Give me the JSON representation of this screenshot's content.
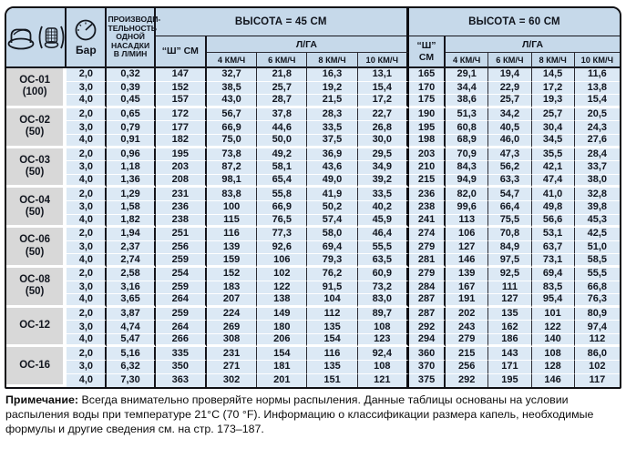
{
  "table": {
    "header": {
      "pressure_label": "Бар",
      "flow_label": "ПРОИЗВОДИ-ТЕЛЬНОСТЬ ОДНОЙ НАСАДКИ В Л/МИН",
      "section_45": "ВЫСОТА = 45 СМ",
      "section_60": "ВЫСОТА = 60 СМ",
      "width_label": "“Ш” СМ",
      "rate_label": "Л/ГА",
      "speed_labels": [
        "4 КМ/Ч",
        "6 КМ/Ч",
        "8 КМ/Ч",
        "10 КМ/Ч"
      ],
      "icons": {
        "nozzle": "flat-fan-nozzle-icon",
        "strainer": "strainer-icon",
        "gauge": "pressure-gauge-icon"
      }
    },
    "groups": [
      {
        "model": "ОС-01",
        "variant": "(100)",
        "rows": [
          [
            "2,0",
            "0,32",
            "147",
            "32,7",
            "21,8",
            "16,3",
            "13,1",
            "165",
            "29,1",
            "19,4",
            "14,5",
            "11,6"
          ],
          [
            "3,0",
            "0,39",
            "152",
            "38,5",
            "25,7",
            "19,2",
            "15,4",
            "170",
            "34,4",
            "22,9",
            "17,2",
            "13,8"
          ],
          [
            "4,0",
            "0,45",
            "157",
            "43,0",
            "28,7",
            "21,5",
            "17,2",
            "175",
            "38,6",
            "25,7",
            "19,3",
            "15,4"
          ]
        ]
      },
      {
        "model": "ОС-02",
        "variant": "(50)",
        "rows": [
          [
            "2,0",
            "0,65",
            "172",
            "56,7",
            "37,8",
            "28,3",
            "22,7",
            "190",
            "51,3",
            "34,2",
            "25,7",
            "20,5"
          ],
          [
            "3,0",
            "0,79",
            "177",
            "66,9",
            "44,6",
            "33,5",
            "26,8",
            "195",
            "60,8",
            "40,5",
            "30,4",
            "24,3"
          ],
          [
            "4,0",
            "0,91",
            "182",
            "75,0",
            "50,0",
            "37,5",
            "30,0",
            "198",
            "68,9",
            "46,0",
            "34,5",
            "27,6"
          ]
        ]
      },
      {
        "model": "ОС-03",
        "variant": "(50)",
        "rows": [
          [
            "2,0",
            "0,96",
            "195",
            "73,8",
            "49,2",
            "36,9",
            "29,5",
            "203",
            "70,9",
            "47,3",
            "35,5",
            "28,4"
          ],
          [
            "3,0",
            "1,18",
            "203",
            "87,2",
            "58,1",
            "43,6",
            "34,9",
            "210",
            "84,3",
            "56,2",
            "42,1",
            "33,7"
          ],
          [
            "4,0",
            "1,36",
            "208",
            "98,1",
            "65,4",
            "49,0",
            "39,2",
            "215",
            "94,9",
            "63,3",
            "47,4",
            "38,0"
          ]
        ]
      },
      {
        "model": "ОС-04",
        "variant": "(50)",
        "rows": [
          [
            "2,0",
            "1,29",
            "231",
            "83,8",
            "55,8",
            "41,9",
            "33,5",
            "236",
            "82,0",
            "54,7",
            "41,0",
            "32,8"
          ],
          [
            "3,0",
            "1,58",
            "236",
            "100",
            "66,9",
            "50,2",
            "40,2",
            "238",
            "99,6",
            "66,4",
            "49,8",
            "39,8"
          ],
          [
            "4,0",
            "1,82",
            "238",
            "115",
            "76,5",
            "57,4",
            "45,9",
            "241",
            "113",
            "75,5",
            "56,6",
            "45,3"
          ]
        ]
      },
      {
        "model": "ОС-06",
        "variant": "(50)",
        "rows": [
          [
            "2,0",
            "1,94",
            "251",
            "116",
            "77,3",
            "58,0",
            "46,4",
            "274",
            "106",
            "70,8",
            "53,1",
            "42,5"
          ],
          [
            "3,0",
            "2,37",
            "256",
            "139",
            "92,6",
            "69,4",
            "55,5",
            "279",
            "127",
            "84,9",
            "63,7",
            "51,0"
          ],
          [
            "4,0",
            "2,74",
            "259",
            "159",
            "106",
            "79,3",
            "63,5",
            "281",
            "146",
            "97,5",
            "73,1",
            "58,5"
          ]
        ]
      },
      {
        "model": "ОС-08",
        "variant": "(50)",
        "rows": [
          [
            "2,0",
            "2,58",
            "254",
            "152",
            "102",
            "76,2",
            "60,9",
            "279",
            "139",
            "92,5",
            "69,4",
            "55,5"
          ],
          [
            "3,0",
            "3,16",
            "259",
            "183",
            "122",
            "91,5",
            "73,2",
            "284",
            "167",
            "111",
            "83,5",
            "66,8"
          ],
          [
            "4,0",
            "3,65",
            "264",
            "207",
            "138",
            "104",
            "83,0",
            "287",
            "191",
            "127",
            "95,4",
            "76,3"
          ]
        ]
      },
      {
        "model": "ОС-12",
        "variant": "",
        "rows": [
          [
            "2,0",
            "3,87",
            "259",
            "224",
            "149",
            "112",
            "89,7",
            "287",
            "202",
            "135",
            "101",
            "80,9"
          ],
          [
            "3,0",
            "4,74",
            "264",
            "269",
            "180",
            "135",
            "108",
            "292",
            "243",
            "162",
            "122",
            "97,4"
          ],
          [
            "4,0",
            "5,47",
            "266",
            "308",
            "206",
            "154",
            "123",
            "294",
            "279",
            "186",
            "140",
            "112"
          ]
        ]
      },
      {
        "model": "ОС-16",
        "variant": "",
        "rows": [
          [
            "2,0",
            "5,16",
            "335",
            "231",
            "154",
            "116",
            "92,4",
            "360",
            "215",
            "143",
            "108",
            "86,0"
          ],
          [
            "3,0",
            "6,32",
            "350",
            "271",
            "181",
            "135",
            "108",
            "370",
            "256",
            "171",
            "128",
            "102"
          ],
          [
            "4,0",
            "7,30",
            "363",
            "302",
            "201",
            "151",
            "121",
            "375",
            "292",
            "195",
            "146",
            "117"
          ]
        ]
      }
    ]
  },
  "note": {
    "label": "Примечание:",
    "text": " Всегда внимательно проверяйте нормы распыления. Данные таблицы основаны на условии распыления воды при температуре 21°C (70 °F). Информацию о классификации размера капель, необходимые формулы и другие сведения см. на стр. 173–187."
  },
  "colors": {
    "header_bg": "#c6d9ea",
    "cell_bg": "#dce9f5",
    "model_bg": "#d8d8d8",
    "border": "#15151c"
  }
}
